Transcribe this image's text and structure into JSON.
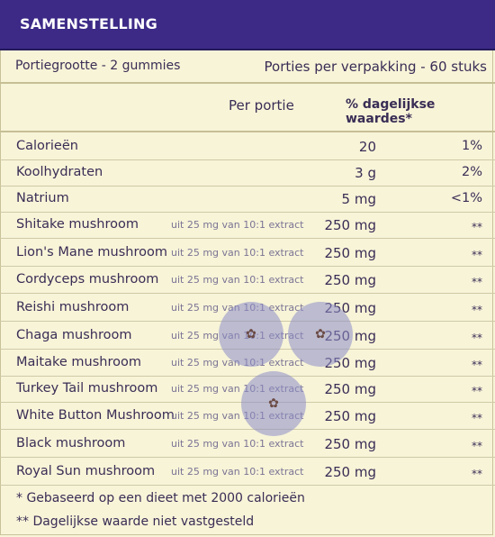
{
  "header": {
    "title": "SAMENSTELLING"
  },
  "portion": {
    "size_label": "Portiegrootte - 2 gummies",
    "per_package_label": "Porties per verpakking - 60 stuks"
  },
  "columns": {
    "per_serving": "Per portie",
    "daily_value": "% dagelijkse waardes*"
  },
  "rows": [
    {
      "name": "Calorieën",
      "extract": "",
      "amount": "20",
      "dv": "1%"
    },
    {
      "name": "Koolhydraten",
      "extract": "",
      "amount": "3 g",
      "dv": "2%"
    },
    {
      "name": "Natrium",
      "extract": "",
      "amount": "5 mg",
      "dv": "<1%"
    },
    {
      "name": "Shitake mushroom",
      "extract": "uit 25 mg van 10:1 extract",
      "amount": "250 mg",
      "dv": "**"
    },
    {
      "name": "Lion's Mane mushroom",
      "extract": "uit 25 mg van 10:1 extract",
      "amount": "250 mg",
      "dv": "**"
    },
    {
      "name": "Cordyceps mushroom",
      "extract": "uit 25 mg van 10:1 extract",
      "amount": "250 mg",
      "dv": "**"
    },
    {
      "name": "Reishi mushroom",
      "extract": "uit 25 mg van 10:1 extract",
      "amount": "250 mg",
      "dv": "**"
    },
    {
      "name": "Chaga mushroom",
      "extract": "uit 25 mg van 10:1 extract",
      "amount": "250 mg",
      "dv": "**"
    },
    {
      "name": "Maitake mushroom",
      "extract": "uit 25 mg van 10:1 extract",
      "amount": "250 mg",
      "dv": "**"
    },
    {
      "name": "Turkey Tail mushroom",
      "extract": "uit 25 mg van 10:1 extract",
      "amount": "250 mg",
      "dv": "**"
    },
    {
      "name": "White Button Mushroom",
      "extract": "uit 25 mg van 10:1 extract",
      "amount": "250 mg",
      "dv": "**"
    },
    {
      "name": "Black mushroom",
      "extract": "uit 25 mg van 10:1 extract",
      "amount": "250 mg",
      "dv": "**"
    },
    {
      "name": "Royal Sun mushroom",
      "extract": "uit 25 mg van 10:1 extract",
      "amount": "250 mg",
      "dv": "**"
    }
  ],
  "footnotes": [
    "* Gebaseerd op een dieet met 2000 calorieën",
    "** Dagelijkse waarde niet vastgesteld"
  ],
  "colors": {
    "header_bg": "#3d2a87",
    "panel_bg": "#f7f4d8",
    "text": "#3a2d55"
  },
  "watermark": {
    "icon": "star-icon"
  }
}
